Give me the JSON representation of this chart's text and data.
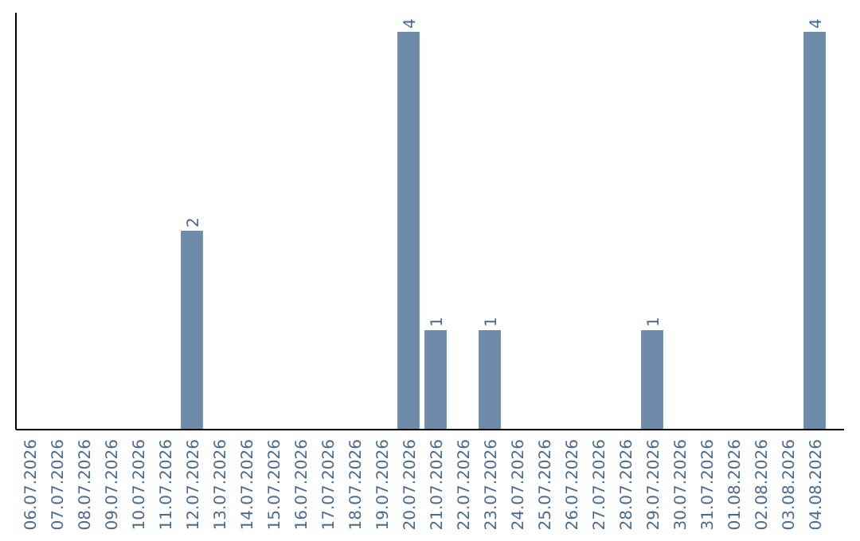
{
  "chart_data": {
    "type": "bar",
    "categories": [
      "06.07.2026",
      "07.07.2026",
      "08.07.2026",
      "09.07.2026",
      "10.07.2026",
      "11.07.2026",
      "12.07.2026",
      "13.07.2026",
      "14.07.2026",
      "15.07.2026",
      "16.07.2026",
      "17.07.2026",
      "18.07.2026",
      "19.07.2026",
      "20.07.2026",
      "21.07.2026",
      "22.07.2026",
      "23.07.2026",
      "24.07.2026",
      "25.07.2026",
      "26.07.2026",
      "27.07.2026",
      "28.07.2026",
      "29.07.2026",
      "30.07.2026",
      "31.07.2026",
      "01.08.2026",
      "02.08.2026",
      "03.08.2026",
      "04.08.2026"
    ],
    "values": [
      0,
      0,
      0,
      0,
      0,
      0,
      2,
      0,
      0,
      0,
      0,
      0,
      0,
      0,
      4,
      1,
      0,
      1,
      0,
      0,
      0,
      0,
      0,
      1,
      0,
      0,
      0,
      0,
      0,
      4
    ],
    "value_labels": [
      null,
      null,
      null,
      null,
      null,
      null,
      "2",
      null,
      null,
      null,
      null,
      null,
      null,
      null,
      "4",
      "1",
      null,
      "1",
      null,
      null,
      null,
      null,
      null,
      "1",
      null,
      null,
      null,
      null,
      null,
      "4"
    ],
    "color": "#6e8caa",
    "tick_labels": "x"
  }
}
